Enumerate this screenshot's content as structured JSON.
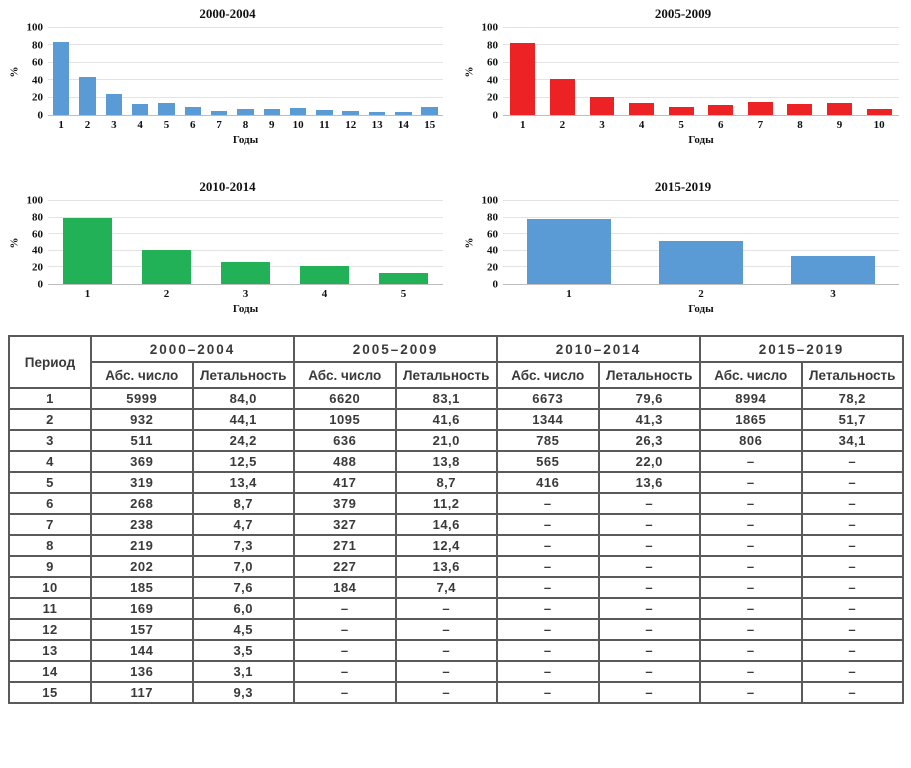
{
  "chart_data": [
    {
      "type": "bar",
      "title": "2000-2004",
      "color": "#5B9BD5",
      "ylabel": "%",
      "xlabel": "Годы",
      "ylim": [
        0,
        100
      ],
      "yticks": [
        0,
        20,
        40,
        60,
        80,
        100
      ],
      "grid": "horizontal",
      "categories": [
        "1",
        "2",
        "3",
        "4",
        "5",
        "6",
        "7",
        "8",
        "9",
        "10",
        "11",
        "12",
        "13",
        "14",
        "15"
      ],
      "values": [
        84.0,
        44.1,
        24.2,
        12.5,
        13.4,
        8.7,
        4.7,
        7.3,
        7.0,
        7.6,
        6.0,
        4.5,
        3.5,
        3.1,
        9.3
      ]
    },
    {
      "type": "bar",
      "title": "2005-2009",
      "color": "#ED2224",
      "ylabel": "%",
      "xlabel": "Годы",
      "ylim": [
        0,
        100
      ],
      "yticks": [
        0,
        20,
        40,
        60,
        80,
        100
      ],
      "grid": "horizontal",
      "categories": [
        "1",
        "2",
        "3",
        "4",
        "5",
        "6",
        "7",
        "8",
        "9",
        "10"
      ],
      "values": [
        83.1,
        41.6,
        21.0,
        13.8,
        8.7,
        11.2,
        14.6,
        12.4,
        13.6,
        7.4
      ]
    },
    {
      "type": "bar",
      "title": "2010-2014",
      "color": "#22B156",
      "ylabel": "%",
      "xlabel": "Годы",
      "ylim": [
        0,
        100
      ],
      "yticks": [
        0,
        20,
        40,
        60,
        80,
        100
      ],
      "grid": "horizontal",
      "categories": [
        "1",
        "2",
        "3",
        "4",
        "5"
      ],
      "values": [
        79.6,
        41.3,
        26.3,
        22.0,
        13.6
      ]
    },
    {
      "type": "bar",
      "title": "2015-2019",
      "color": "#5B9BD5",
      "ylabel": "%",
      "xlabel": "Годы",
      "ylim": [
        0,
        100
      ],
      "yticks": [
        0,
        20,
        40,
        60,
        80,
        100
      ],
      "grid": "horizontal",
      "categories": [
        "1",
        "2",
        "3"
      ],
      "values": [
        78.2,
        51.7,
        34.1
      ]
    }
  ],
  "table": {
    "period_header": "Период",
    "groups": [
      {
        "label": "2000–2004",
        "sub": [
          "Абс. число",
          "Летальность"
        ]
      },
      {
        "label": "2005–2009",
        "sub": [
          "Абс. число",
          "Летальность"
        ]
      },
      {
        "label": "2010–2014",
        "sub": [
          "Абс. число",
          "Летальность"
        ]
      },
      {
        "label": "2015–2019",
        "sub": [
          "Абс. число",
          "Летальность"
        ]
      }
    ],
    "rows": [
      [
        "1",
        "5999",
        "84,0",
        "6620",
        "83,1",
        "6673",
        "79,6",
        "8994",
        "78,2"
      ],
      [
        "2",
        "932",
        "44,1",
        "1095",
        "41,6",
        "1344",
        "41,3",
        "1865",
        "51,7"
      ],
      [
        "3",
        "511",
        "24,2",
        "636",
        "21,0",
        "785",
        "26,3",
        "806",
        "34,1"
      ],
      [
        "4",
        "369",
        "12,5",
        "488",
        "13,8",
        "565",
        "22,0",
        "–",
        "–"
      ],
      [
        "5",
        "319",
        "13,4",
        "417",
        "8,7",
        "416",
        "13,6",
        "–",
        "–"
      ],
      [
        "6",
        "268",
        "8,7",
        "379",
        "11,2",
        "–",
        "–",
        "–",
        "–"
      ],
      [
        "7",
        "238",
        "4,7",
        "327",
        "14,6",
        "–",
        "–",
        "–",
        "–"
      ],
      [
        "8",
        "219",
        "7,3",
        "271",
        "12,4",
        "–",
        "–",
        "–",
        "–"
      ],
      [
        "9",
        "202",
        "7,0",
        "227",
        "13,6",
        "–",
        "–",
        "–",
        "–"
      ],
      [
        "10",
        "185",
        "7,6",
        "184",
        "7,4",
        "–",
        "–",
        "–",
        "–"
      ],
      [
        "11",
        "169",
        "6,0",
        "–",
        "–",
        "–",
        "–",
        "–",
        "–"
      ],
      [
        "12",
        "157",
        "4,5",
        "–",
        "–",
        "–",
        "–",
        "–",
        "–"
      ],
      [
        "13",
        "144",
        "3,5",
        "–",
        "–",
        "–",
        "–",
        "–",
        "–"
      ],
      [
        "14",
        "136",
        "3,1",
        "–",
        "–",
        "–",
        "–",
        "–",
        "–"
      ],
      [
        "15",
        "117",
        "9,3",
        "–",
        "–",
        "–",
        "–",
        "–",
        "–"
      ]
    ]
  }
}
